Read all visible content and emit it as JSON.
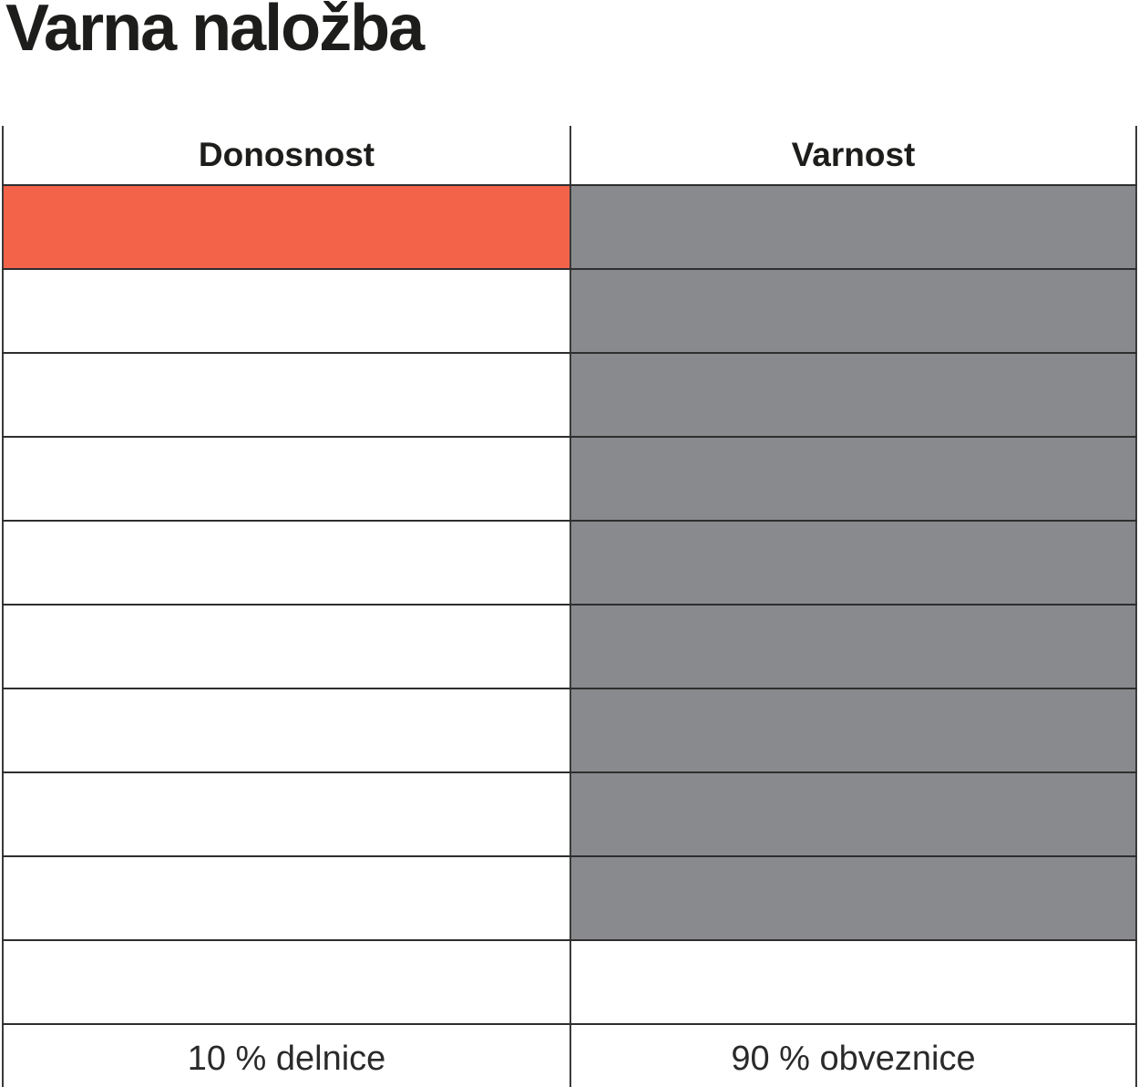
{
  "title": "Varna naložba",
  "colors": {
    "accent_orange": "#F2634A",
    "neutral_gray": "#898A8E",
    "border_dark": "#3A3A3A",
    "text": "#1D1D1B",
    "background": "#FFFFFF"
  },
  "table": {
    "headers": [
      "Donosnost",
      "Varnost"
    ],
    "footers": [
      "10 % delnice",
      "90 % obveznice"
    ],
    "grid_rows": [
      {
        "donosnost": "orange",
        "varnost": "gray"
      },
      {
        "donosnost": "empty",
        "varnost": "gray"
      },
      {
        "donosnost": "empty",
        "varnost": "gray"
      },
      {
        "donosnost": "empty",
        "varnost": "gray"
      },
      {
        "donosnost": "empty",
        "varnost": "gray"
      },
      {
        "donosnost": "empty",
        "varnost": "gray"
      },
      {
        "donosnost": "empty",
        "varnost": "gray"
      },
      {
        "donosnost": "empty",
        "varnost": "gray"
      },
      {
        "donosnost": "empty",
        "varnost": "gray"
      },
      {
        "donosnost": "empty",
        "varnost": "empty"
      }
    ]
  },
  "chart_data": {
    "type": "table",
    "title": "Varna naložba",
    "categories": [
      "Donosnost",
      "Varnost"
    ],
    "total_rows_per_column": 10,
    "series": [
      {
        "name": "Donosnost",
        "filled_cells": 1,
        "total_cells": 10,
        "percent": 10,
        "label": "10 % delnice",
        "color": "#F2634A"
      },
      {
        "name": "Varnost",
        "filled_cells": 9,
        "total_cells": 10,
        "percent": 90,
        "label": "90 % obveznice",
        "color": "#898A8E"
      }
    ],
    "layout": {
      "grid": "two-column pictorial allocation grid, filled cells from top",
      "legend_position": "none",
      "footer_labels": true
    }
  }
}
